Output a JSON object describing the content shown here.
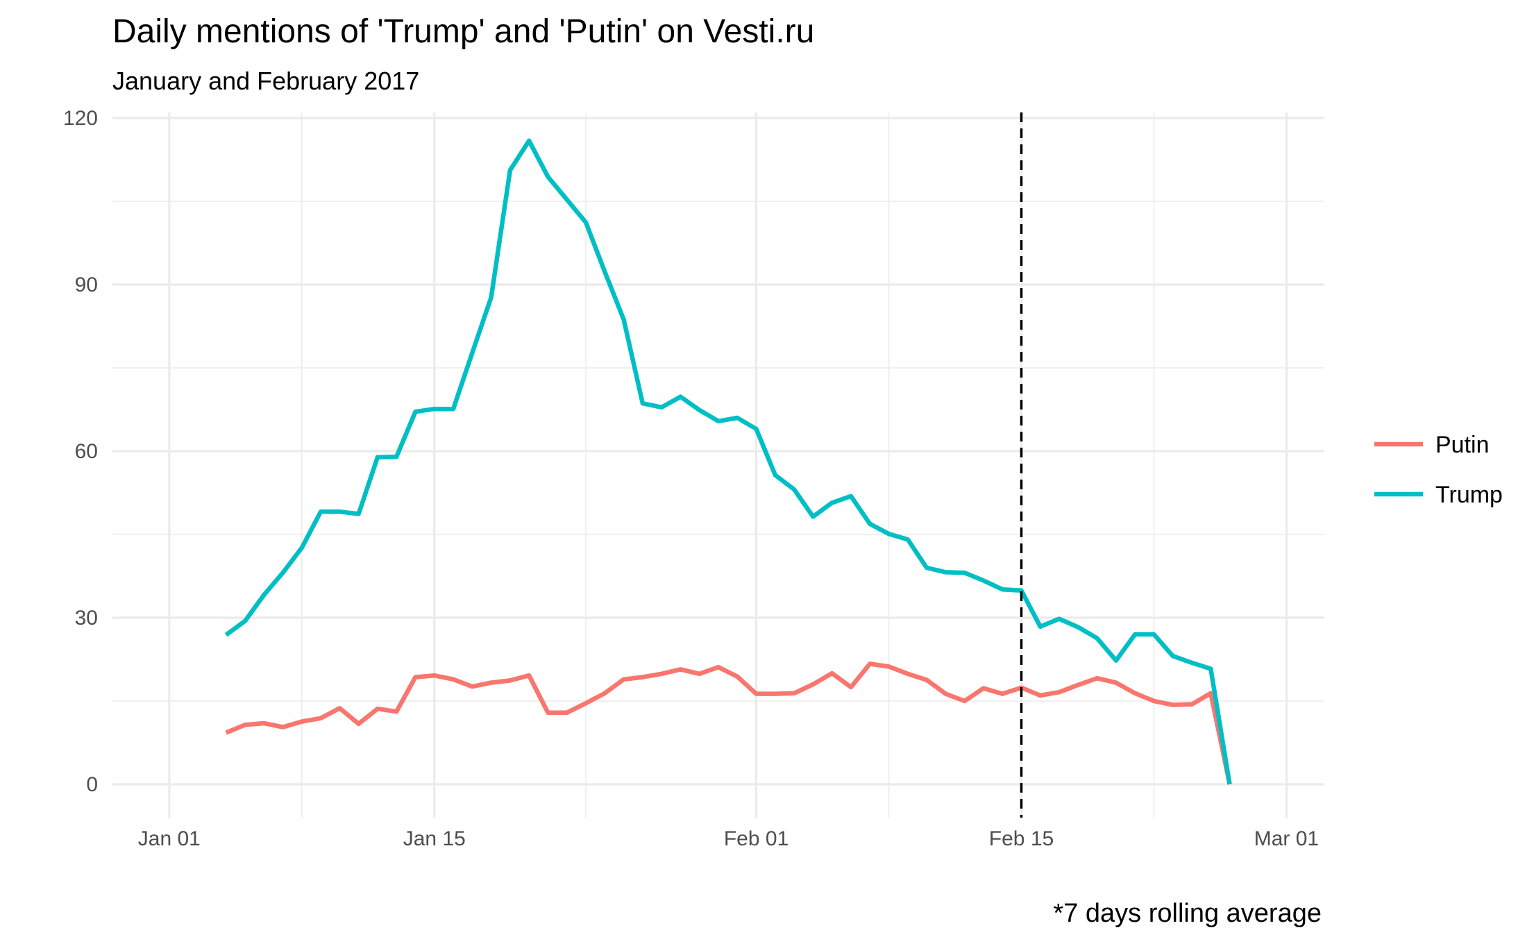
{
  "chart_data": {
    "type": "line",
    "title": "Daily mentions of 'Trump' and 'Putin' on Vesti.ru",
    "subtitle": "January and February 2017",
    "caption": "*7 days rolling average",
    "xlabel": "",
    "ylabel": "",
    "x_range": [
      "2016-12-29",
      "2017-03-03"
    ],
    "ylim": [
      -6,
      121
    ],
    "y_ticks": [
      0,
      30,
      60,
      90,
      120
    ],
    "x_ticks": [
      {
        "date": "2017-01-01",
        "label": "Jan 01"
      },
      {
        "date": "2017-01-15",
        "label": "Jan 15"
      },
      {
        "date": "2017-02-01",
        "label": "Feb 01"
      },
      {
        "date": "2017-02-15",
        "label": "Feb 15"
      },
      {
        "date": "2017-03-01",
        "label": "Mar 01"
      }
    ],
    "x_minor_grid": [
      "2017-01-08",
      "2017-01-23",
      "2017-02-08",
      "2017-02-22"
    ],
    "y_minor_grid": [
      15,
      45,
      75,
      105
    ],
    "grid": true,
    "legend_position": "right",
    "vline": {
      "date": "2017-02-15",
      "style": "dashed",
      "color": "#000000"
    },
    "x": [
      "2017-01-04",
      "2017-01-05",
      "2017-01-06",
      "2017-01-07",
      "2017-01-08",
      "2017-01-09",
      "2017-01-10",
      "2017-01-11",
      "2017-01-12",
      "2017-01-13",
      "2017-01-14",
      "2017-01-15",
      "2017-01-16",
      "2017-01-17",
      "2017-01-18",
      "2017-01-19",
      "2017-01-20",
      "2017-01-21",
      "2017-01-22",
      "2017-01-23",
      "2017-01-24",
      "2017-01-25",
      "2017-01-26",
      "2017-01-27",
      "2017-01-28",
      "2017-01-29",
      "2017-01-30",
      "2017-01-31",
      "2017-02-01",
      "2017-02-02",
      "2017-02-03",
      "2017-02-04",
      "2017-02-05",
      "2017-02-06",
      "2017-02-07",
      "2017-02-08",
      "2017-02-09",
      "2017-02-10",
      "2017-02-11",
      "2017-02-12",
      "2017-02-13",
      "2017-02-14",
      "2017-02-15",
      "2017-02-16",
      "2017-02-17",
      "2017-02-18",
      "2017-02-19",
      "2017-02-20",
      "2017-02-21",
      "2017-02-22",
      "2017-02-23",
      "2017-02-24",
      "2017-02-25",
      "2017-02-26"
    ],
    "series": [
      {
        "name": "Putin",
        "color": "#F8766D",
        "values": [
          9.3,
          10.7,
          11.0,
          10.3,
          11.3,
          11.9,
          13.7,
          10.9,
          13.6,
          13.1,
          19.3,
          19.6,
          18.9,
          17.6,
          18.3,
          18.7,
          19.6,
          12.9,
          12.9,
          14.6,
          16.4,
          18.9,
          19.3,
          19.9,
          20.7,
          19.9,
          21.1,
          19.4,
          16.3,
          16.3,
          16.4,
          18.0,
          20.0,
          17.5,
          21.7,
          21.2,
          19.9,
          18.8,
          16.3,
          15.0,
          17.3,
          16.3,
          17.4,
          16.0,
          16.6,
          17.9,
          19.1,
          18.3,
          16.4,
          15.0,
          14.3,
          14.4,
          16.4,
          0
        ]
      },
      {
        "name": "Trump",
        "color": "#00BFC4",
        "values": [
          26.9,
          29.4,
          34.1,
          38.1,
          42.6,
          49.1,
          49.1,
          48.7,
          58.9,
          59.0,
          67.1,
          67.6,
          67.6,
          77.7,
          87.7,
          110.6,
          115.9,
          109.4,
          105.3,
          101.2,
          92.3,
          83.7,
          68.6,
          67.9,
          69.8,
          67.4,
          65.4,
          66.0,
          64.0,
          55.7,
          53.1,
          48.2,
          50.7,
          51.9,
          46.9,
          45.1,
          44.1,
          39.0,
          38.2,
          38.1,
          36.7,
          35.1,
          34.9,
          28.4,
          29.8,
          28.3,
          26.3,
          22.3,
          27.0,
          27.0,
          23.1,
          21.9,
          20.8,
          0
        ]
      }
    ]
  }
}
